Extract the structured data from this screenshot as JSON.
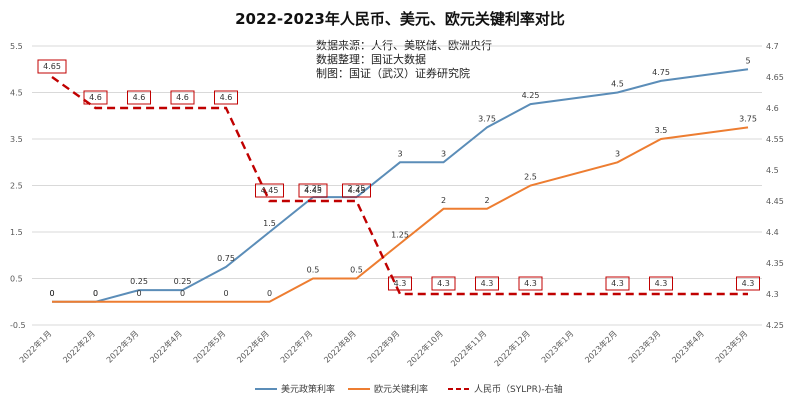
{
  "chart_data": {
    "type": "line",
    "title": "2022-2023年人民币、美元、欧元关键利率对比",
    "notes": [
      "数据来源：人行、美联储、欧洲央行",
      "数据整理：国证大数据",
      "制图：国证（武汉）证券研究院"
    ],
    "categories": [
      "2022年1月",
      "2022年2月",
      "2022年3月",
      "2022年4月",
      "2022年5月",
      "2022年6月",
      "2022年7月",
      "2022年8月",
      "2022年9月",
      "2022年10月",
      "2022年11月",
      "2022年12月",
      "2023年1月",
      "2023年2月",
      "2023年3月",
      "2023年4月",
      "2023年5月"
    ],
    "left_axis": {
      "min": -0.5,
      "max": 5.5,
      "ticks": [
        "-0.5",
        "0.5",
        "1.5",
        "2.5",
        "3.5",
        "4.5",
        "5.5"
      ]
    },
    "right_axis": {
      "min": 4.25,
      "max": 4.7,
      "ticks": [
        "4.25",
        "4.3",
        "4.35",
        "4.4",
        "4.45",
        "4.5",
        "4.55",
        "4.6",
        "4.65",
        "4.7"
      ]
    },
    "series": [
      {
        "name": "美元政策利率",
        "axis": "left",
        "color": "#5b8db8",
        "values": [
          0,
          0,
          0.25,
          0.25,
          0.75,
          1.5,
          2.25,
          2.25,
          3,
          3,
          3.75,
          4.25,
          null,
          4.5,
          4.75,
          null,
          5
        ],
        "labels": [
          "0",
          "0",
          "0.25",
          "0.25",
          "0.75",
          "1.5",
          "2.25",
          "2.25",
          "3",
          "3",
          "3.75",
          "4.25",
          "",
          "4.5",
          "4.75",
          "",
          "5"
        ]
      },
      {
        "name": "欧元关键利率",
        "axis": "left",
        "color": "#ed7d31",
        "values": [
          0,
          0,
          0,
          0,
          0,
          0,
          0.5,
          0.5,
          1.25,
          2,
          2,
          2.5,
          null,
          3,
          3.5,
          null,
          3.75
        ],
        "labels": [
          "0",
          "0",
          "0",
          "0",
          "0",
          "0",
          "0.5",
          "0.5",
          "1.25",
          "2",
          "2",
          "2.5",
          "",
          "3",
          "3.5",
          "",
          "3.75"
        ]
      },
      {
        "name": "人民币（SYLPR)-右轴",
        "axis": "right",
        "color": "#c00000",
        "values": [
          4.65,
          4.6,
          4.6,
          4.6,
          4.6,
          4.45,
          4.45,
          4.45,
          4.3,
          4.3,
          4.3,
          4.3,
          null,
          4.3,
          4.3,
          null,
          4.3
        ],
        "labels": [
          "4.65",
          "4.6",
          "4.6",
          "4.6",
          "4.6",
          "4.45",
          "4.45",
          "4.45",
          "4.3",
          "4.3",
          "4.3",
          "4.3",
          "",
          "4.3",
          "4.3",
          "",
          "4.3"
        ]
      }
    ]
  }
}
